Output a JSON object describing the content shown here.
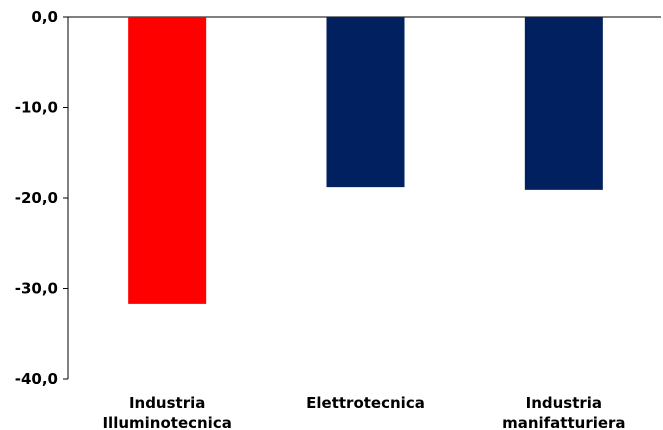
{
  "chart_data": {
    "type": "bar",
    "categories": [
      [
        "Industria",
        "Illuminotecnica"
      ],
      [
        "Elettrotecnica"
      ],
      [
        "Industria",
        "manifatturiera"
      ]
    ],
    "values": [
      -31.7,
      -18.8,
      -19.1
    ],
    "bar_colors": [
      "#ff0000",
      "#002060",
      "#002060"
    ],
    "ylim": [
      -40,
      0
    ],
    "yticks": [
      0,
      -10,
      -20,
      -30,
      -40
    ],
    "ytick_labels": [
      "0,0",
      "-10,0",
      "-20,0",
      "-30,0",
      "-40,0"
    ],
    "title": "",
    "xlabel": "",
    "ylabel": "",
    "grid": false,
    "legend": "none"
  }
}
